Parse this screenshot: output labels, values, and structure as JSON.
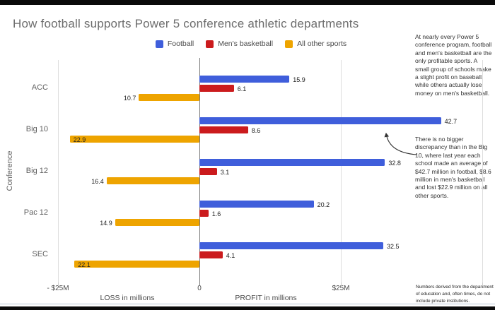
{
  "title": "How football supports Power 5 conference athletic departments",
  "chart_data": {
    "type": "bar",
    "orientation": "horizontal",
    "title": "How football supports Power 5 conference athletic departments",
    "categories": [
      "ACC",
      "Big 10",
      "Big 12",
      "Pac 12",
      "SEC"
    ],
    "series": [
      {
        "name": "Football",
        "color": "#3f5edb",
        "values": [
          15.9,
          42.7,
          32.8,
          20.2,
          32.5
        ]
      },
      {
        "name": "Men's basketball",
        "color": "#cb1b1d",
        "values": [
          6.1,
          8.6,
          3.1,
          1.6,
          4.1
        ]
      },
      {
        "name": "All other sports",
        "color": "#eea400",
        "values": [
          -10.7,
          -22.9,
          -16.4,
          -14.9,
          -22.1
        ]
      }
    ],
    "xlim": [
      -25,
      50
    ],
    "x_ticks": [
      {
        "value": -25,
        "label": "- $25M"
      },
      {
        "value": 0,
        "label": "0"
      },
      {
        "value": 25,
        "label": "$25M"
      },
      {
        "value": 50,
        "label": ""
      }
    ],
    "ylabel": "Conference",
    "axis_captions": {
      "loss": "LOSS in millions",
      "profit": "PROFIT in millions"
    },
    "grid": true,
    "legend_position": "top"
  },
  "annotations": {
    "note1": "At nearly every Power 5 conference program, football and men's basketball are the only profitable sports. A small group of schools make a slight profit on baseball, while others actually lose money on men's basketball.",
    "note2": "There is no bigger discrepancy than in the Big 10, where last year each school made an average of $42.7 million in football, $8.6 million in men's basketball and lost $22.9 million on all other sports.",
    "footnote": "Numbers derived from the department of education and, often times, do not include private institutions."
  }
}
